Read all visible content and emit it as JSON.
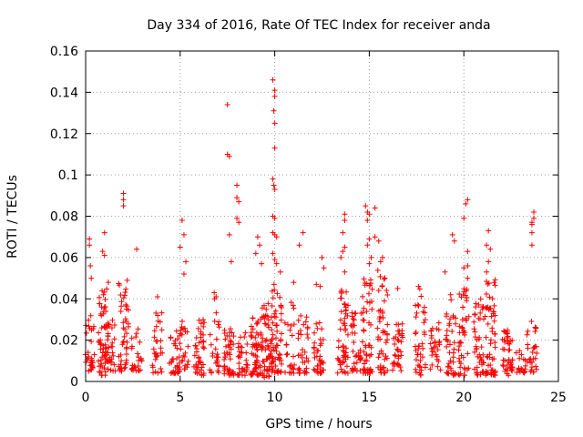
{
  "chart_data": {
    "type": "scatter",
    "title": "Day 334 of 2016, Rate Of TEC Index for receiver anda",
    "xlabel": "GPS time / hours",
    "ylabel": "ROTI / TECUs",
    "xlim": [
      0,
      25
    ],
    "ylim": [
      0,
      0.16
    ],
    "xticks": [
      0,
      5,
      10,
      15,
      20,
      25
    ],
    "xtick_labels": [
      "0",
      "5",
      "10",
      "15",
      "20",
      "25"
    ],
    "yticks": [
      0,
      0.02,
      0.04,
      0.06,
      0.08,
      0.1,
      0.12,
      0.14,
      0.16
    ],
    "ytick_labels": [
      "0",
      "0.02",
      "0.04",
      "0.06",
      "0.08",
      "0.1",
      "0.12",
      "0.14",
      "0.16"
    ],
    "grid": true,
    "marker": "plus",
    "color": "#ff0000",
    "clusters": [
      {
        "x": 0.2,
        "y_range": [
          0.005,
          0.032
        ],
        "n": 30
      },
      {
        "x": 0.95,
        "y_range": [
          0.003,
          0.045
        ],
        "n": 60
      },
      {
        "x": 1.3,
        "y_range": [
          0.005,
          0.03
        ],
        "n": 30
      },
      {
        "x": 2.0,
        "y_range": [
          0.005,
          0.048
        ],
        "n": 45
      },
      {
        "x": 2.7,
        "y_range": [
          0.005,
          0.026
        ],
        "n": 25
      },
      {
        "x": 3.8,
        "y_range": [
          0.004,
          0.035
        ],
        "n": 30
      },
      {
        "x": 4.7,
        "y_range": [
          0.004,
          0.027
        ],
        "n": 30
      },
      {
        "x": 5.2,
        "y_range": [
          0.006,
          0.03
        ],
        "n": 25
      },
      {
        "x": 6.0,
        "y_range": [
          0.003,
          0.03
        ],
        "n": 45
      },
      {
        "x": 6.8,
        "y_range": [
          0.004,
          0.042
        ],
        "n": 25
      },
      {
        "x": 7.6,
        "y_range": [
          0.003,
          0.028
        ],
        "n": 45
      },
      {
        "x": 8.3,
        "y_range": [
          0.003,
          0.025
        ],
        "n": 35
      },
      {
        "x": 9.0,
        "y_range": [
          0.003,
          0.032
        ],
        "n": 55
      },
      {
        "x": 9.6,
        "y_range": [
          0.002,
          0.04
        ],
        "n": 60
      },
      {
        "x": 10.1,
        "y_range": [
          0.004,
          0.05
        ],
        "n": 55
      },
      {
        "x": 10.8,
        "y_range": [
          0.004,
          0.04
        ],
        "n": 25
      },
      {
        "x": 11.5,
        "y_range": [
          0.004,
          0.032
        ],
        "n": 35
      },
      {
        "x": 12.3,
        "y_range": [
          0.004,
          0.03
        ],
        "n": 40
      },
      {
        "x": 13.6,
        "y_range": [
          0.004,
          0.05
        ],
        "n": 55
      },
      {
        "x": 14.3,
        "y_range": [
          0.005,
          0.04
        ],
        "n": 35
      },
      {
        "x": 14.9,
        "y_range": [
          0.004,
          0.05
        ],
        "n": 55
      },
      {
        "x": 15.7,
        "y_range": [
          0.004,
          0.055
        ],
        "n": 50
      },
      {
        "x": 16.5,
        "y_range": [
          0.005,
          0.03
        ],
        "n": 35
      },
      {
        "x": 17.7,
        "y_range": [
          0.003,
          0.045
        ],
        "n": 40
      },
      {
        "x": 18.5,
        "y_range": [
          0.005,
          0.03
        ],
        "n": 30
      },
      {
        "x": 19.3,
        "y_range": [
          0.003,
          0.04
        ],
        "n": 40
      },
      {
        "x": 20.0,
        "y_range": [
          0.003,
          0.045
        ],
        "n": 45
      },
      {
        "x": 20.8,
        "y_range": [
          0.003,
          0.04
        ],
        "n": 45
      },
      {
        "x": 21.4,
        "y_range": [
          0.003,
          0.05
        ],
        "n": 60
      },
      {
        "x": 22.3,
        "y_range": [
          0.003,
          0.025
        ],
        "n": 45
      },
      {
        "x": 23.0,
        "y_range": [
          0.004,
          0.02
        ],
        "n": 20
      },
      {
        "x": 23.6,
        "y_range": [
          0.004,
          0.03
        ],
        "n": 30
      }
    ],
    "points": [
      [
        0.2,
        0.069
      ],
      [
        0.2,
        0.066
      ],
      [
        0.25,
        0.056
      ],
      [
        0.3,
        0.05
      ],
      [
        1.0,
        0.072
      ],
      [
        0.9,
        0.063
      ],
      [
        1.0,
        0.061
      ],
      [
        1.2,
        0.048
      ],
      [
        2.0,
        0.091
      ],
      [
        2.0,
        0.088
      ],
      [
        2.0,
        0.085
      ],
      [
        2.2,
        0.049
      ],
      [
        2.7,
        0.064
      ],
      [
        3.8,
        0.041
      ],
      [
        5.1,
        0.078
      ],
      [
        5.2,
        0.071
      ],
      [
        5.0,
        0.065
      ],
      [
        5.3,
        0.058
      ],
      [
        5.2,
        0.052
      ],
      [
        6.8,
        0.043
      ],
      [
        6.9,
        0.041
      ],
      [
        7.5,
        0.134
      ],
      [
        7.5,
        0.11
      ],
      [
        7.6,
        0.109
      ],
      [
        7.6,
        0.071
      ],
      [
        7.7,
        0.058
      ],
      [
        8.0,
        0.095
      ],
      [
        8.0,
        0.089
      ],
      [
        8.1,
        0.087
      ],
      [
        8.0,
        0.079
      ],
      [
        8.1,
        0.077
      ],
      [
        9.1,
        0.07
      ],
      [
        9.2,
        0.066
      ],
      [
        9.0,
        0.062
      ],
      [
        9.3,
        0.057
      ],
      [
        9.9,
        0.146
      ],
      [
        10.0,
        0.141
      ],
      [
        10.0,
        0.138
      ],
      [
        9.95,
        0.131
      ],
      [
        10.0,
        0.125
      ],
      [
        10.0,
        0.113
      ],
      [
        9.9,
        0.098
      ],
      [
        9.95,
        0.095
      ],
      [
        10.0,
        0.093
      ],
      [
        9.9,
        0.08
      ],
      [
        10.0,
        0.079
      ],
      [
        9.9,
        0.072
      ],
      [
        10.0,
        0.071
      ],
      [
        10.1,
        0.07
      ],
      [
        9.9,
        0.062
      ],
      [
        10.0,
        0.059
      ],
      [
        10.1,
        0.057
      ],
      [
        10.3,
        0.053
      ],
      [
        11.5,
        0.072
      ],
      [
        11.3,
        0.066
      ],
      [
        11.0,
        0.048
      ],
      [
        12.5,
        0.06
      ],
      [
        12.6,
        0.055
      ],
      [
        12.2,
        0.047
      ],
      [
        12.4,
        0.046
      ],
      [
        13.7,
        0.081
      ],
      [
        13.7,
        0.078
      ],
      [
        13.6,
        0.072
      ],
      [
        13.7,
        0.065
      ],
      [
        13.6,
        0.063
      ],
      [
        13.5,
        0.06
      ],
      [
        13.7,
        0.053
      ],
      [
        14.8,
        0.085
      ],
      [
        14.9,
        0.082
      ],
      [
        15.0,
        0.081
      ],
      [
        14.9,
        0.078
      ],
      [
        15.3,
        0.084
      ],
      [
        15.0,
        0.069
      ],
      [
        14.9,
        0.066
      ],
      [
        15.3,
        0.07
      ],
      [
        15.5,
        0.068
      ],
      [
        15.1,
        0.06
      ],
      [
        15.6,
        0.058
      ],
      [
        15.7,
        0.06
      ],
      [
        15.0,
        0.057
      ],
      [
        16.5,
        0.045
      ],
      [
        17.6,
        0.046
      ],
      [
        19.0,
        0.053
      ],
      [
        19.4,
        0.071
      ],
      [
        19.5,
        0.068
      ],
      [
        19.3,
        0.042
      ],
      [
        20.0,
        0.055
      ],
      [
        20.2,
        0.088
      ],
      [
        20.1,
        0.086
      ],
      [
        20.0,
        0.079
      ],
      [
        20.2,
        0.063
      ],
      [
        20.2,
        0.056
      ],
      [
        20.2,
        0.05
      ],
      [
        21.3,
        0.073
      ],
      [
        21.2,
        0.066
      ],
      [
        21.4,
        0.064
      ],
      [
        21.3,
        0.058
      ],
      [
        21.2,
        0.053
      ],
      [
        23.7,
        0.082
      ],
      [
        23.7,
        0.079
      ],
      [
        23.6,
        0.077
      ],
      [
        23.6,
        0.076
      ],
      [
        23.6,
        0.072
      ],
      [
        23.6,
        0.066
      ]
    ]
  }
}
